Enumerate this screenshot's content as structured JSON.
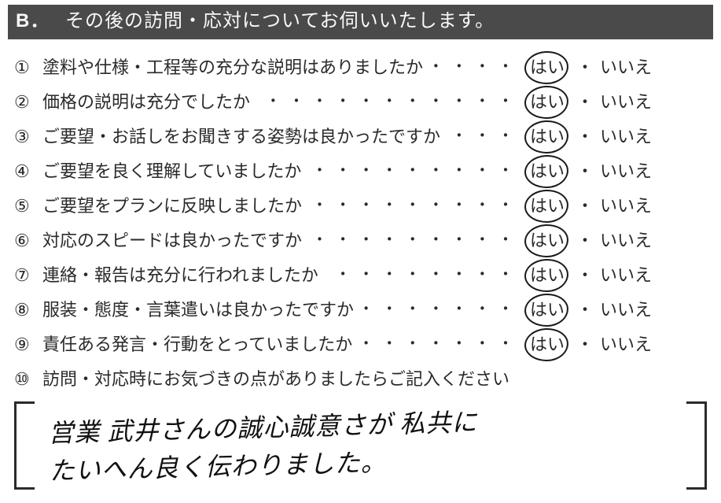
{
  "header": {
    "label": "B．",
    "title": "その後の訪問・応対についてお伺いいたします。"
  },
  "answer_labels": {
    "yes": "はい",
    "sep": "・",
    "no": "いいえ"
  },
  "questions": [
    {
      "num": "①",
      "text": "塗料や仕様・工程等の充分な説明はありましたか",
      "circled": "yes"
    },
    {
      "num": "②",
      "text": "価格の説明は充分でしたか",
      "circled": "yes"
    },
    {
      "num": "③",
      "text": "ご要望・お話しをお聞きする姿勢は良かったですか",
      "circled": "yes"
    },
    {
      "num": "④",
      "text": "ご要望を良く理解していましたか",
      "circled": "yes"
    },
    {
      "num": "⑤",
      "text": "ご要望をプランに反映しましたか",
      "circled": "yes"
    },
    {
      "num": "⑥",
      "text": "対応のスピードは良かったですか",
      "circled": "yes"
    },
    {
      "num": "⑦",
      "text": "連絡・報告は充分に行われましたか",
      "circled": "yes"
    },
    {
      "num": "⑧",
      "text": "服装・態度・言葉遣いは良かったですか",
      "circled": "yes"
    },
    {
      "num": "⑨",
      "text": "責任ある発言・行動をとっていましたか",
      "circled": "yes"
    }
  ],
  "question_final": {
    "num": "⑩",
    "text": "訪問・対応時にお気づきの点がありましたらご記入ください"
  },
  "free_answer": {
    "line1": "営業 武井さんの誠心誠意さが 私共に",
    "line2": "たいへん良く伝わりました。"
  },
  "colors": {
    "header_bg": "#4a4a4a",
    "header_fg": "#f8f8f8",
    "text": "#2a2a2a",
    "circle": "#1a1a1a"
  }
}
